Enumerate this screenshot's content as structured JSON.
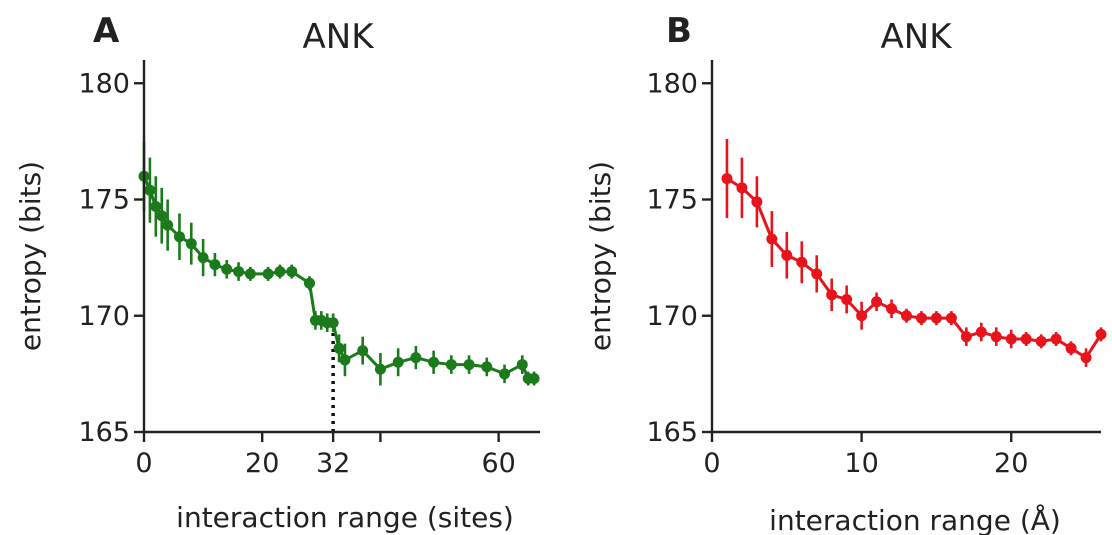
{
  "colors": {
    "panel_a": "#1b7a1b",
    "panel_b": "#e8141c",
    "axis": "#222222"
  },
  "chart_data": [
    {
      "type": "line",
      "panel_label": "A",
      "title": "ANK",
      "xlabel": "interaction range (sites)",
      "ylabel": "entropy (bits)",
      "xlim": [
        0,
        67
      ],
      "ylim": [
        165,
        181
      ],
      "xticks": [
        0,
        20,
        32,
        40,
        60
      ],
      "xtick_labels": [
        "0",
        "20",
        "32",
        "",
        "60"
      ],
      "yticks": [
        165,
        170,
        175,
        180
      ],
      "ytick_labels": [
        "165",
        "170",
        "175",
        "180"
      ],
      "grid": false,
      "annotations": [
        {
          "type": "dotted-vline",
          "x": 32,
          "y_from": 165,
          "y_to": 169.3
        }
      ],
      "series": [
        {
          "color": "#1b7a1b",
          "points": [
            {
              "x": 0,
              "y": 176.0,
              "err": 1.5
            },
            {
              "x": 1,
              "y": 175.4,
              "err": 1.4
            },
            {
              "x": 2,
              "y": 174.7,
              "err": 1.3
            },
            {
              "x": 3,
              "y": 174.3,
              "err": 1.2
            },
            {
              "x": 4,
              "y": 173.9,
              "err": 1.1
            },
            {
              "x": 6,
              "y": 173.4,
              "err": 1.0
            },
            {
              "x": 8,
              "y": 173.1,
              "err": 0.9
            },
            {
              "x": 10,
              "y": 172.5,
              "err": 0.8
            },
            {
              "x": 12,
              "y": 172.2,
              "err": 0.5
            },
            {
              "x": 14,
              "y": 172.0,
              "err": 0.4
            },
            {
              "x": 16,
              "y": 171.9,
              "err": 0.4
            },
            {
              "x": 18,
              "y": 171.8,
              "err": 0.3
            },
            {
              "x": 21,
              "y": 171.8,
              "err": 0.3
            },
            {
              "x": 23,
              "y": 171.9,
              "err": 0.3
            },
            {
              "x": 25,
              "y": 171.9,
              "err": 0.3
            },
            {
              "x": 28,
              "y": 171.4,
              "err": 0.3
            },
            {
              "x": 29,
              "y": 169.8,
              "err": 0.4
            },
            {
              "x": 30,
              "y": 169.8,
              "err": 0.4
            },
            {
              "x": 31,
              "y": 169.7,
              "err": 0.4
            },
            {
              "x": 32,
              "y": 169.7,
              "err": 0.4
            },
            {
              "x": 33,
              "y": 168.6,
              "err": 0.6
            },
            {
              "x": 34,
              "y": 168.1,
              "err": 0.7
            },
            {
              "x": 37,
              "y": 168.5,
              "err": 0.6
            },
            {
              "x": 40,
              "y": 167.7,
              "err": 0.7
            },
            {
              "x": 43,
              "y": 168.0,
              "err": 0.6
            },
            {
              "x": 46,
              "y": 168.2,
              "err": 0.5
            },
            {
              "x": 49,
              "y": 168.0,
              "err": 0.5
            },
            {
              "x": 52,
              "y": 167.9,
              "err": 0.4
            },
            {
              "x": 55,
              "y": 167.9,
              "err": 0.4
            },
            {
              "x": 58,
              "y": 167.8,
              "err": 0.4
            },
            {
              "x": 61,
              "y": 167.5,
              "err": 0.4
            },
            {
              "x": 64,
              "y": 167.9,
              "err": 0.4
            },
            {
              "x": 65,
              "y": 167.3,
              "err": 0.3
            },
            {
              "x": 66,
              "y": 167.3,
              "err": 0.3
            }
          ]
        }
      ]
    },
    {
      "type": "line",
      "panel_label": "B",
      "title": "ANK",
      "xlabel": "interaction range (Å)",
      "ylabel": "entropy (bits)",
      "xlim": [
        0,
        26
      ],
      "ylim": [
        165,
        181
      ],
      "xticks": [
        0,
        10,
        20
      ],
      "xtick_labels": [
        "0",
        "10",
        "20"
      ],
      "yticks": [
        165,
        170,
        175,
        180
      ],
      "ytick_labels": [
        "165",
        "170",
        "175",
        "180"
      ],
      "grid": false,
      "annotations": [],
      "series": [
        {
          "color": "#e8141c",
          "points": [
            {
              "x": 1,
              "y": 175.9,
              "err": 1.7
            },
            {
              "x": 2,
              "y": 175.5,
              "err": 1.3
            },
            {
              "x": 3,
              "y": 174.9,
              "err": 1.1
            },
            {
              "x": 4,
              "y": 173.3,
              "err": 1.2
            },
            {
              "x": 5,
              "y": 172.6,
              "err": 1.0
            },
            {
              "x": 6,
              "y": 172.3,
              "err": 0.9
            },
            {
              "x": 7,
              "y": 171.8,
              "err": 0.8
            },
            {
              "x": 8,
              "y": 170.9,
              "err": 0.7
            },
            {
              "x": 9,
              "y": 170.7,
              "err": 0.6
            },
            {
              "x": 10,
              "y": 170.0,
              "err": 0.6
            },
            {
              "x": 11,
              "y": 170.6,
              "err": 0.4
            },
            {
              "x": 12,
              "y": 170.3,
              "err": 0.4
            },
            {
              "x": 13,
              "y": 170.0,
              "err": 0.3
            },
            {
              "x": 14,
              "y": 169.9,
              "err": 0.3
            },
            {
              "x": 15,
              "y": 169.9,
              "err": 0.3
            },
            {
              "x": 16,
              "y": 169.9,
              "err": 0.3
            },
            {
              "x": 17,
              "y": 169.1,
              "err": 0.4
            },
            {
              "x": 18,
              "y": 169.3,
              "err": 0.4
            },
            {
              "x": 19,
              "y": 169.1,
              "err": 0.4
            },
            {
              "x": 20,
              "y": 169.0,
              "err": 0.4
            },
            {
              "x": 21,
              "y": 169.0,
              "err": 0.3
            },
            {
              "x": 22,
              "y": 168.9,
              "err": 0.3
            },
            {
              "x": 23,
              "y": 169.0,
              "err": 0.3
            },
            {
              "x": 24,
              "y": 168.6,
              "err": 0.3
            },
            {
              "x": 25,
              "y": 168.2,
              "err": 0.4
            },
            {
              "x": 26,
              "y": 169.2,
              "err": 0.3
            }
          ]
        }
      ]
    }
  ]
}
